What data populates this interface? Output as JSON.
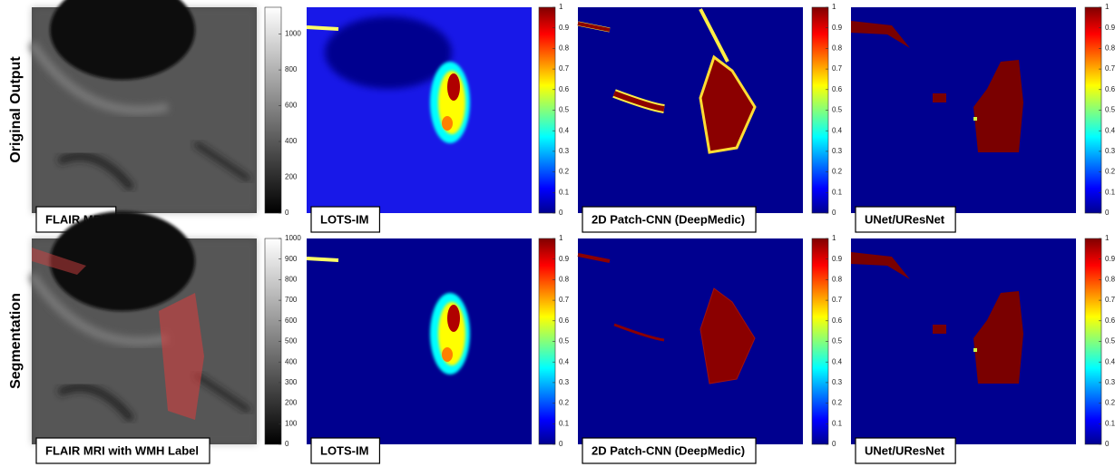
{
  "rows": [
    {
      "label": "Original Output",
      "panels": [
        {
          "label": "FLAIR MRI",
          "colormap": "gray",
          "colorbar": {
            "range": [
              0,
              1150
            ],
            "ticks": [
              0,
              200,
              400,
              600,
              800,
              1000
            ]
          }
        },
        {
          "label": "LOTS-IM",
          "colormap": "jet",
          "colorbar": {
            "range": [
              0,
              1
            ],
            "ticks": [
              0,
              0.1,
              0.2,
              0.3,
              0.4,
              0.5,
              0.6,
              0.7,
              0.8,
              0.9,
              1
            ]
          }
        },
        {
          "label": "2D Patch-CNN (DeepMedic)",
          "colormap": "jet",
          "colorbar": {
            "range": [
              0,
              1
            ],
            "ticks": [
              0,
              0.1,
              0.2,
              0.3,
              0.4,
              0.5,
              0.6,
              0.7,
              0.8,
              0.9,
              1
            ]
          }
        },
        {
          "label": "UNet/UResNet",
          "colormap": "jet",
          "colorbar": {
            "range": [
              0,
              1
            ],
            "ticks": [
              0,
              0.1,
              0.2,
              0.3,
              0.4,
              0.5,
              0.6,
              0.7,
              0.8,
              0.9,
              1
            ]
          }
        }
      ]
    },
    {
      "label": "Segmentation",
      "panels": [
        {
          "label": "FLAIR MRI with WMH Label",
          "colormap": "gray",
          "colorbar": {
            "range": [
              0,
              1000
            ],
            "ticks": [
              0,
              100,
              200,
              300,
              400,
              500,
              600,
              700,
              800,
              900,
              1000
            ]
          }
        },
        {
          "label": "LOTS-IM",
          "colormap": "jet",
          "colorbar": {
            "range": [
              0,
              1
            ],
            "ticks": [
              0,
              0.1,
              0.2,
              0.3,
              0.4,
              0.5,
              0.6,
              0.7,
              0.8,
              0.9,
              1
            ]
          }
        },
        {
          "label": "2D Patch-CNN (DeepMedic)",
          "colormap": "jet",
          "colorbar": {
            "range": [
              0,
              1
            ],
            "ticks": [
              0,
              0.1,
              0.2,
              0.3,
              0.4,
              0.5,
              0.6,
              0.7,
              0.8,
              0.9,
              1
            ]
          }
        },
        {
          "label": "UNet/UResNet",
          "colormap": "jet",
          "colorbar": {
            "range": [
              0,
              1
            ],
            "ticks": [
              0,
              0.1,
              0.2,
              0.3,
              0.4,
              0.5,
              0.6,
              0.7,
              0.8,
              0.9,
              1
            ]
          }
        }
      ]
    }
  ]
}
